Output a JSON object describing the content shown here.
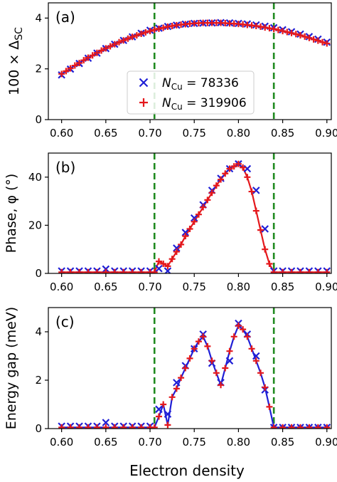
{
  "figure": {
    "xlabel": "Electron density",
    "marker_colors": {
      "nc78336": "#1f1fd6",
      "nc319906": "#e4181c"
    },
    "vline_color": "#1f8a1f",
    "line_colors": {
      "a": "#e4181c",
      "b": "#e4181c",
      "c": "#1f1fd6"
    }
  },
  "chart_data": [
    {
      "type": "line",
      "panel_label": "(a)",
      "ylabel": "100 × Δ",
      "ylabel_sub": "SC",
      "xlim": [
        0.585,
        0.905
      ],
      "ylim": [
        0,
        4.6
      ],
      "xticks": [
        "0.60",
        "0.65",
        "0.70",
        "0.75",
        "0.80",
        "0.85",
        "0.90"
      ],
      "yticks": [
        "0",
        "2",
        "4"
      ],
      "vlines": [
        0.705,
        0.84
      ],
      "legend": {
        "placement": "center",
        "entries": [
          {
            "symbol": "×",
            "prefix": "N",
            "sub": "Cu",
            "suffix": " = 78336"
          },
          {
            "symbol": "+",
            "prefix": "N",
            "sub": "Cu",
            "suffix": " = 319906"
          }
        ]
      },
      "series": [
        {
          "name": "N_Cu = 78336",
          "marker": "x",
          "x": [
            0.6,
            0.61,
            0.62,
            0.63,
            0.64,
            0.65,
            0.66,
            0.67,
            0.68,
            0.69,
            0.7,
            0.71,
            0.72,
            0.73,
            0.74,
            0.75,
            0.76,
            0.77,
            0.78,
            0.79,
            0.8,
            0.81,
            0.82,
            0.83,
            0.84,
            0.85,
            0.86,
            0.87,
            0.88,
            0.89,
            0.9
          ],
          "y": [
            1.76,
            1.99,
            2.21,
            2.42,
            2.62,
            2.8,
            2.97,
            3.12,
            3.26,
            3.4,
            3.52,
            3.6,
            3.67,
            3.72,
            3.76,
            3.79,
            3.8,
            3.81,
            3.82,
            3.81,
            3.79,
            3.77,
            3.73,
            3.68,
            3.62,
            3.54,
            3.46,
            3.37,
            3.27,
            3.17,
            3.05
          ]
        },
        {
          "name": "N_Cu = 319906",
          "marker": "+",
          "x": [
            0.6,
            0.605,
            0.61,
            0.615,
            0.62,
            0.625,
            0.63,
            0.635,
            0.64,
            0.645,
            0.65,
            0.655,
            0.66,
            0.665,
            0.67,
            0.675,
            0.68,
            0.685,
            0.69,
            0.695,
            0.7,
            0.705,
            0.71,
            0.715,
            0.72,
            0.725,
            0.73,
            0.735,
            0.74,
            0.745,
            0.75,
            0.755,
            0.76,
            0.765,
            0.77,
            0.775,
            0.78,
            0.785,
            0.79,
            0.795,
            0.8,
            0.805,
            0.81,
            0.815,
            0.82,
            0.825,
            0.83,
            0.835,
            0.84,
            0.845,
            0.85,
            0.855,
            0.86,
            0.865,
            0.87,
            0.875,
            0.88,
            0.885,
            0.89,
            0.895,
            0.9
          ],
          "y": [
            1.8,
            1.91,
            2.02,
            2.13,
            2.23,
            2.34,
            2.44,
            2.53,
            2.63,
            2.72,
            2.81,
            2.89,
            2.97,
            3.05,
            3.12,
            3.19,
            3.26,
            3.32,
            3.38,
            3.44,
            3.49,
            3.54,
            3.58,
            3.62,
            3.66,
            3.69,
            3.72,
            3.74,
            3.76,
            3.78,
            3.79,
            3.8,
            3.81,
            3.81,
            3.81,
            3.81,
            3.81,
            3.8,
            3.79,
            3.78,
            3.77,
            3.75,
            3.73,
            3.71,
            3.69,
            3.66,
            3.63,
            3.6,
            3.57,
            3.53,
            3.49,
            3.45,
            3.41,
            3.37,
            3.32,
            3.27,
            3.22,
            3.16,
            3.11,
            3.05,
            3.0
          ]
        }
      ]
    },
    {
      "type": "line",
      "panel_label": "(b)",
      "ylabel": "Phase, φ (°)",
      "xlim": [
        0.585,
        0.905
      ],
      "ylim": [
        0,
        50
      ],
      "xticks": [
        "0.60",
        "0.65",
        "0.70",
        "0.75",
        "0.80",
        "0.85",
        "0.90"
      ],
      "yticks": [
        "0",
        "20",
        "40"
      ],
      "vlines": [
        0.705,
        0.84
      ],
      "series": [
        {
          "name": "N_Cu = 78336",
          "marker": "x",
          "x": [
            0.6,
            0.61,
            0.62,
            0.63,
            0.64,
            0.65,
            0.66,
            0.67,
            0.68,
            0.69,
            0.7,
            0.71,
            0.72,
            0.73,
            0.74,
            0.75,
            0.76,
            0.77,
            0.78,
            0.79,
            0.8,
            0.81,
            0.82,
            0.83,
            0.84,
            0.85,
            0.86,
            0.87,
            0.88,
            0.89,
            0.9
          ],
          "y": [
            1.0,
            1.0,
            1.0,
            1.0,
            1.0,
            1.8,
            1.0,
            1.0,
            1.0,
            1.0,
            1.0,
            2.0,
            1.0,
            10.5,
            17.0,
            23.0,
            28.5,
            34.5,
            39.5,
            43.5,
            45.5,
            43.5,
            34.5,
            18.5,
            1.0,
            1.0,
            1.0,
            1.0,
            1.0,
            1.0,
            1.0
          ]
        },
        {
          "name": "N_Cu = 319906",
          "marker": "+",
          "x": [
            0.6,
            0.61,
            0.62,
            0.63,
            0.64,
            0.65,
            0.66,
            0.67,
            0.68,
            0.69,
            0.7,
            0.705,
            0.71,
            0.715,
            0.72,
            0.725,
            0.73,
            0.735,
            0.74,
            0.745,
            0.75,
            0.755,
            0.76,
            0.765,
            0.77,
            0.775,
            0.78,
            0.785,
            0.79,
            0.795,
            0.8,
            0.805,
            0.81,
            0.815,
            0.82,
            0.825,
            0.83,
            0.835,
            0.84,
            0.85,
            0.86,
            0.87,
            0.88,
            0.89,
            0.9
          ],
          "y": [
            0.5,
            0.5,
            0.5,
            0.5,
            0.5,
            0.5,
            0.5,
            0.5,
            0.5,
            0.5,
            0.5,
            0.5,
            5.0,
            4.0,
            3.0,
            6.0,
            9.0,
            12.0,
            15.5,
            18.5,
            21.5,
            24.5,
            27.5,
            30.5,
            33.5,
            36.5,
            39.0,
            41.5,
            43.5,
            44.5,
            45.5,
            44.0,
            40.0,
            34.0,
            26.0,
            18.0,
            10.0,
            4.0,
            0.5,
            0.5,
            0.5,
            0.5,
            0.5,
            0.5,
            0.5
          ]
        }
      ]
    },
    {
      "type": "line",
      "panel_label": "(c)",
      "ylabel": "Energy gap (meV)",
      "xlim": [
        0.585,
        0.905
      ],
      "ylim": [
        0,
        5.0
      ],
      "xticks": [
        "0.60",
        "0.65",
        "0.70",
        "0.75",
        "0.80",
        "0.85",
        "0.90"
      ],
      "yticks": [
        "0",
        "2",
        "4"
      ],
      "vlines": [
        0.705,
        0.84
      ],
      "series": [
        {
          "name": "N_Cu = 78336",
          "marker": "x",
          "x": [
            0.6,
            0.61,
            0.62,
            0.63,
            0.64,
            0.65,
            0.66,
            0.67,
            0.68,
            0.69,
            0.7,
            0.71,
            0.72,
            0.73,
            0.74,
            0.75,
            0.76,
            0.77,
            0.78,
            0.79,
            0.8,
            0.81,
            0.82,
            0.83,
            0.84,
            0.85,
            0.86,
            0.87,
            0.88,
            0.89,
            0.9
          ],
          "y": [
            0.1,
            0.1,
            0.1,
            0.1,
            0.1,
            0.25,
            0.1,
            0.1,
            0.1,
            0.1,
            0.1,
            0.8,
            0.6,
            1.9,
            2.6,
            3.3,
            3.9,
            2.7,
            1.9,
            2.8,
            4.35,
            3.9,
            3.0,
            1.6,
            0.05,
            0.05,
            0.05,
            0.05,
            0.05,
            0.05,
            0.05
          ]
        },
        {
          "name": "N_Cu = 319906",
          "marker": "+",
          "x": [
            0.6,
            0.61,
            0.62,
            0.63,
            0.64,
            0.65,
            0.66,
            0.67,
            0.68,
            0.69,
            0.7,
            0.705,
            0.71,
            0.715,
            0.72,
            0.725,
            0.73,
            0.735,
            0.74,
            0.745,
            0.75,
            0.755,
            0.76,
            0.765,
            0.77,
            0.775,
            0.78,
            0.785,
            0.79,
            0.795,
            0.8,
            0.805,
            0.81,
            0.815,
            0.82,
            0.825,
            0.83,
            0.835,
            0.84,
            0.85,
            0.86,
            0.87,
            0.88,
            0.89,
            0.9
          ],
          "y": [
            0.05,
            0.05,
            0.05,
            0.05,
            0.05,
            0.05,
            0.05,
            0.05,
            0.05,
            0.05,
            0.05,
            0.05,
            0.5,
            1.0,
            0.15,
            1.3,
            1.65,
            2.1,
            2.5,
            2.9,
            3.3,
            3.6,
            3.8,
            3.4,
            2.8,
            2.3,
            1.8,
            2.5,
            3.2,
            3.8,
            4.25,
            4.1,
            3.8,
            3.3,
            2.8,
            2.3,
            1.7,
            0.9,
            0.05,
            0.05,
            0.05,
            0.05,
            0.05,
            0.05,
            0.05
          ]
        }
      ]
    }
  ]
}
